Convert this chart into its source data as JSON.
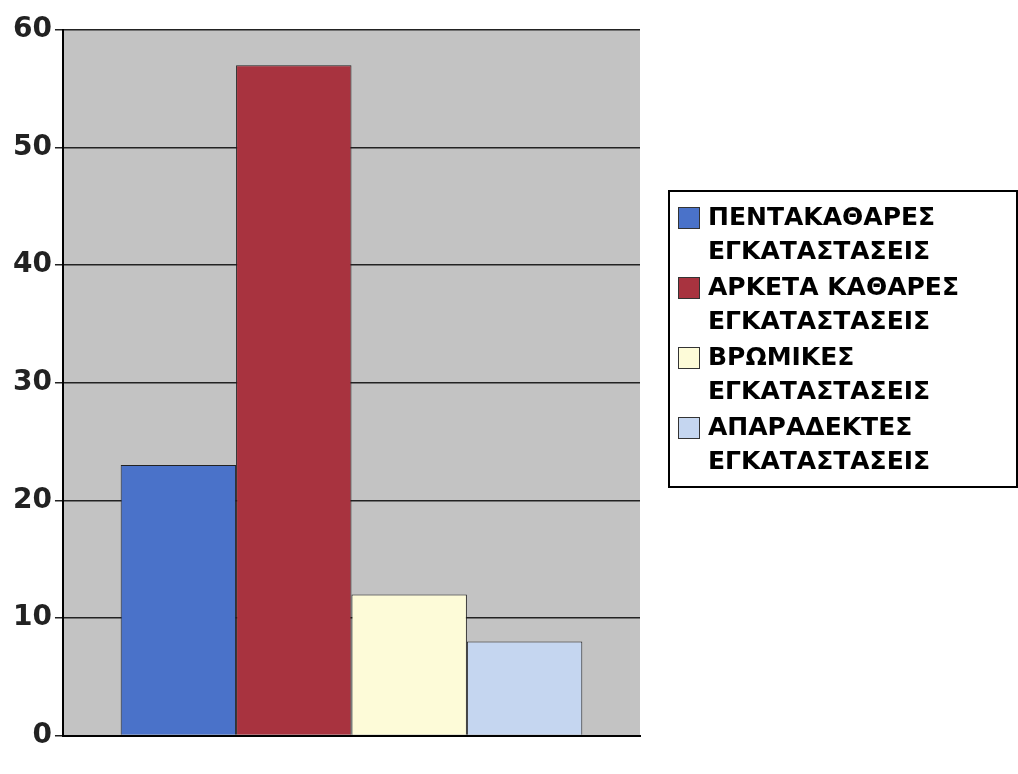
{
  "chart_data": {
    "type": "bar",
    "categories": [
      null
    ],
    "series": [
      {
        "name": "ΠΕΝΤΑΚΑΘΑΡΕΣ ΕΓΚΑΤΑΣΤΑΣΕΙΣ",
        "color": "#4a72c9",
        "values": [
          23
        ]
      },
      {
        "name": "ΑΡΚΕΤΑ ΚΑΘΑΡΕΣ ΕΓΚΑΤΑΣΤΑΣΕΙΣ",
        "color": "#a8333f",
        "values": [
          57
        ]
      },
      {
        "name": "ΒΡΩΜΙΚΕΣ ΕΓΚΑΤΑΣΤΑΣΕΙΣ",
        "color": "#fdfbd8",
        "values": [
          12
        ]
      },
      {
        "name": "ΑΠΑΡΑΔΕΚΤΕΣ ΕΓΚΑΤΑΣΤΑΣΕΙΣ",
        "color": "#c5d6f0",
        "values": [
          8
        ]
      }
    ],
    "ylim": [
      0,
      60
    ],
    "yticks": [
      0,
      10,
      20,
      30,
      40,
      50,
      60
    ],
    "grid": "y",
    "legend": "right"
  }
}
